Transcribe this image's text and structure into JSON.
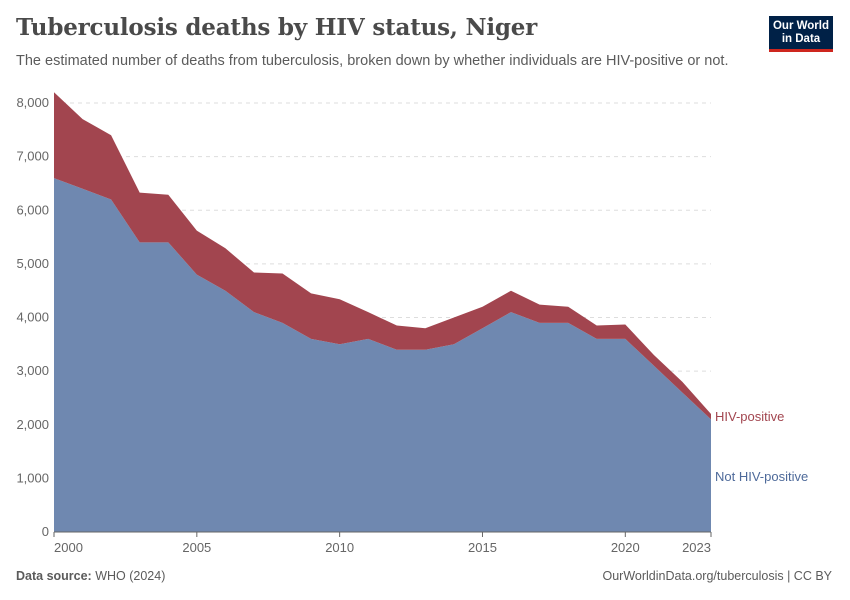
{
  "header": {
    "title": "Tuberculosis deaths by HIV status, Niger",
    "subtitle": "The estimated number of deaths from tuberculosis, broken down by whether individuals are HIV-positive or not."
  },
  "logo": {
    "line1": "Our World",
    "line2": "in Data"
  },
  "footer": {
    "source_label": "Data source:",
    "source_value": "WHO (2024)",
    "credit": "OurWorldinData.org/tuberculosis | CC BY"
  },
  "colors": {
    "hiv_positive": "#a2454f",
    "not_hiv_positive": "#6f88b0",
    "grid": "#dddddd",
    "axis": "#666666"
  },
  "chart_data": {
    "type": "area",
    "stacked": true,
    "title": "Tuberculosis deaths by HIV status, Niger",
    "x": [
      2000,
      2001,
      2002,
      2003,
      2004,
      2005,
      2006,
      2007,
      2008,
      2009,
      2010,
      2011,
      2012,
      2013,
      2014,
      2015,
      2016,
      2017,
      2018,
      2019,
      2020,
      2021,
      2022,
      2023
    ],
    "x_ticks": [
      "2000",
      "2005",
      "2010",
      "2015",
      "2020",
      "2023"
    ],
    "y_ticks": [
      "0",
      "1,000",
      "2,000",
      "3,000",
      "4,000",
      "5,000",
      "6,000",
      "7,000",
      "8,000"
    ],
    "ylim": [
      0,
      8000
    ],
    "grid": true,
    "series": [
      {
        "name": "Not HIV-positive",
        "color": "#6f88b0",
        "values": [
          6600,
          6400,
          6200,
          5400,
          5400,
          4800,
          4500,
          4100,
          3900,
          3600,
          3500,
          3600,
          3400,
          3400,
          3500,
          3800,
          4100,
          3900,
          3900,
          3600,
          3600,
          3100,
          2600,
          2100
        ]
      },
      {
        "name": "HIV-positive",
        "color": "#a2454f",
        "values": [
          1600,
          1300,
          1200,
          930,
          890,
          820,
          790,
          740,
          920,
          850,
          840,
          500,
          450,
          400,
          500,
          400,
          400,
          340,
          300,
          250,
          270,
          200,
          200,
          100
        ]
      }
    ]
  }
}
